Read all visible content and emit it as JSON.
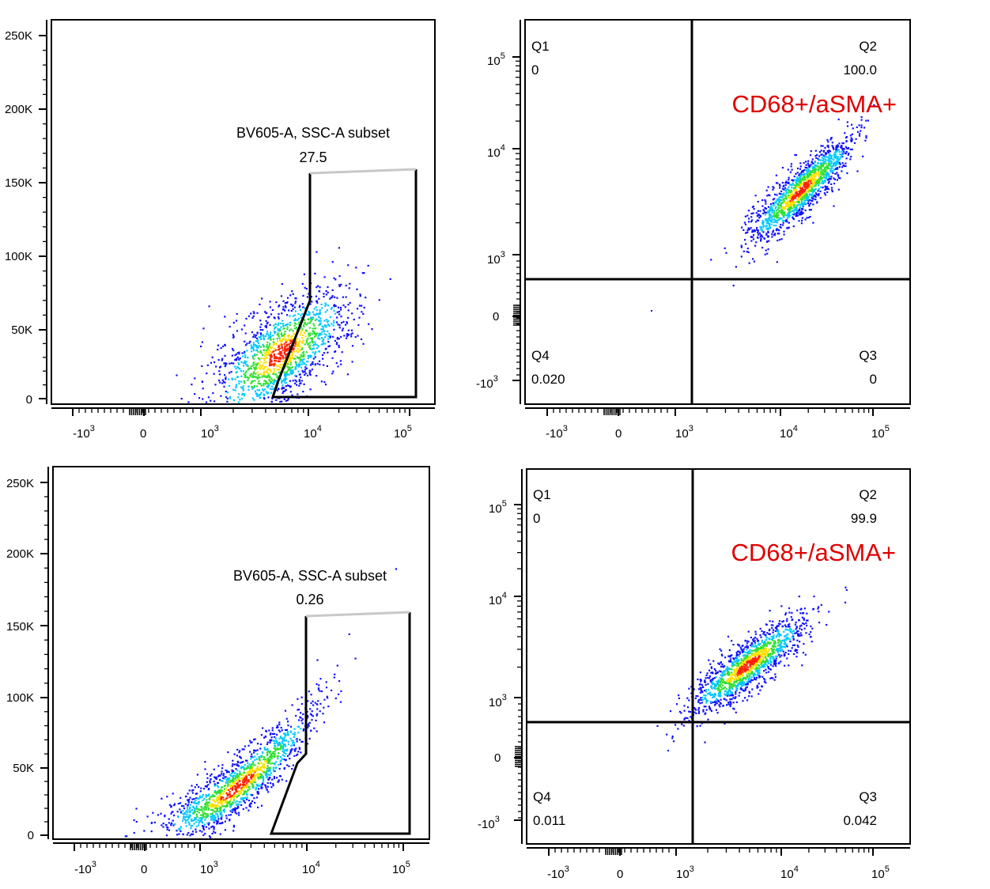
{
  "chart_data": [
    {
      "type": "scatter",
      "panel": "top-left",
      "xscale": "biexponential",
      "y_ticks": [
        "250K",
        "200K",
        "150K",
        "100K",
        "50K",
        "0"
      ],
      "y_tick_values": [
        250000,
        200000,
        150000,
        100000,
        50000,
        0
      ],
      "x_ticks": [
        {
          "base": "-10",
          "exp": "3"
        },
        {
          "base": "0",
          "exp": ""
        },
        {
          "base": "10",
          "exp": "3"
        },
        {
          "base": "10",
          "exp": "4"
        },
        {
          "base": "10",
          "exp": "5"
        }
      ],
      "gate": {
        "name": "BV605-A, SSC-A subset",
        "value": "27.5"
      },
      "population": {
        "center": [
          5500,
          30000
        ],
        "spread": "diagonal",
        "points": 1500
      }
    },
    {
      "type": "scatter",
      "panel": "top-right",
      "xscale": "biexponential",
      "yscale": "biexponential",
      "y_ticks": [
        {
          "base": "10",
          "exp": "5"
        },
        {
          "base": "10",
          "exp": "4"
        },
        {
          "base": "10",
          "exp": "3"
        },
        {
          "base": "0",
          "exp": ""
        },
        {
          "base": "-10",
          "exp": "3"
        }
      ],
      "x_ticks": [
        {
          "base": "-10",
          "exp": "3"
        },
        {
          "base": "0",
          "exp": ""
        },
        {
          "base": "10",
          "exp": "3"
        },
        {
          "base": "10",
          "exp": "4"
        },
        {
          "base": "10",
          "exp": "5"
        }
      ],
      "quadrants": [
        {
          "name": "Q1",
          "value": "0"
        },
        {
          "name": "Q2",
          "value": "100.0"
        },
        {
          "name": "Q3",
          "value": "0"
        },
        {
          "name": "Q4",
          "value": "0.020"
        }
      ],
      "annotation": "CD68+/aSMA+",
      "population": {
        "center": [
          20000,
          5000
        ],
        "spread": "diagonal",
        "points": 1500
      }
    },
    {
      "type": "scatter",
      "panel": "bottom-left",
      "xscale": "biexponential",
      "y_ticks": [
        "250K",
        "200K",
        "150K",
        "100K",
        "50K",
        "0"
      ],
      "y_tick_values": [
        250000,
        200000,
        150000,
        100000,
        50000,
        0
      ],
      "x_ticks": [
        {
          "base": "-10",
          "exp": "3"
        },
        {
          "base": "0",
          "exp": ""
        },
        {
          "base": "10",
          "exp": "3"
        },
        {
          "base": "10",
          "exp": "4"
        },
        {
          "base": "10",
          "exp": "5"
        }
      ],
      "gate": {
        "name": "BV605-A, SSC-A subset",
        "value": "0.26"
      },
      "population": {
        "center": [
          2000,
          18000
        ],
        "spread": "curved",
        "points": 1500
      }
    },
    {
      "type": "scatter",
      "panel": "bottom-right",
      "xscale": "biexponential",
      "yscale": "biexponential",
      "y_ticks": [
        {
          "base": "10",
          "exp": "5"
        },
        {
          "base": "10",
          "exp": "4"
        },
        {
          "base": "10",
          "exp": "3"
        },
        {
          "base": "0",
          "exp": ""
        },
        {
          "base": "-10",
          "exp": "3"
        }
      ],
      "x_ticks": [
        {
          "base": "-10",
          "exp": "3"
        },
        {
          "base": "0",
          "exp": ""
        },
        {
          "base": "10",
          "exp": "3"
        },
        {
          "base": "10",
          "exp": "4"
        },
        {
          "base": "10",
          "exp": "5"
        }
      ],
      "quadrants": [
        {
          "name": "Q1",
          "value": "0"
        },
        {
          "name": "Q2",
          "value": "99.9"
        },
        {
          "name": "Q3",
          "value": "0.042"
        },
        {
          "name": "Q4",
          "value": "0.011"
        }
      ],
      "annotation": "CD68+/aSMA+",
      "population": {
        "center": [
          3500,
          1800
        ],
        "spread": "diagonal",
        "points": 1500
      }
    }
  ],
  "colors": {
    "density_low": "#1010ff",
    "density_mid1": "#00c8ff",
    "density_mid2": "#30e030",
    "density_mid3": "#ffe000",
    "density_high": "#ff2000",
    "annotation": "#e00000",
    "gate_line": "#000000",
    "gate_top_line": "#c8c8c8"
  }
}
